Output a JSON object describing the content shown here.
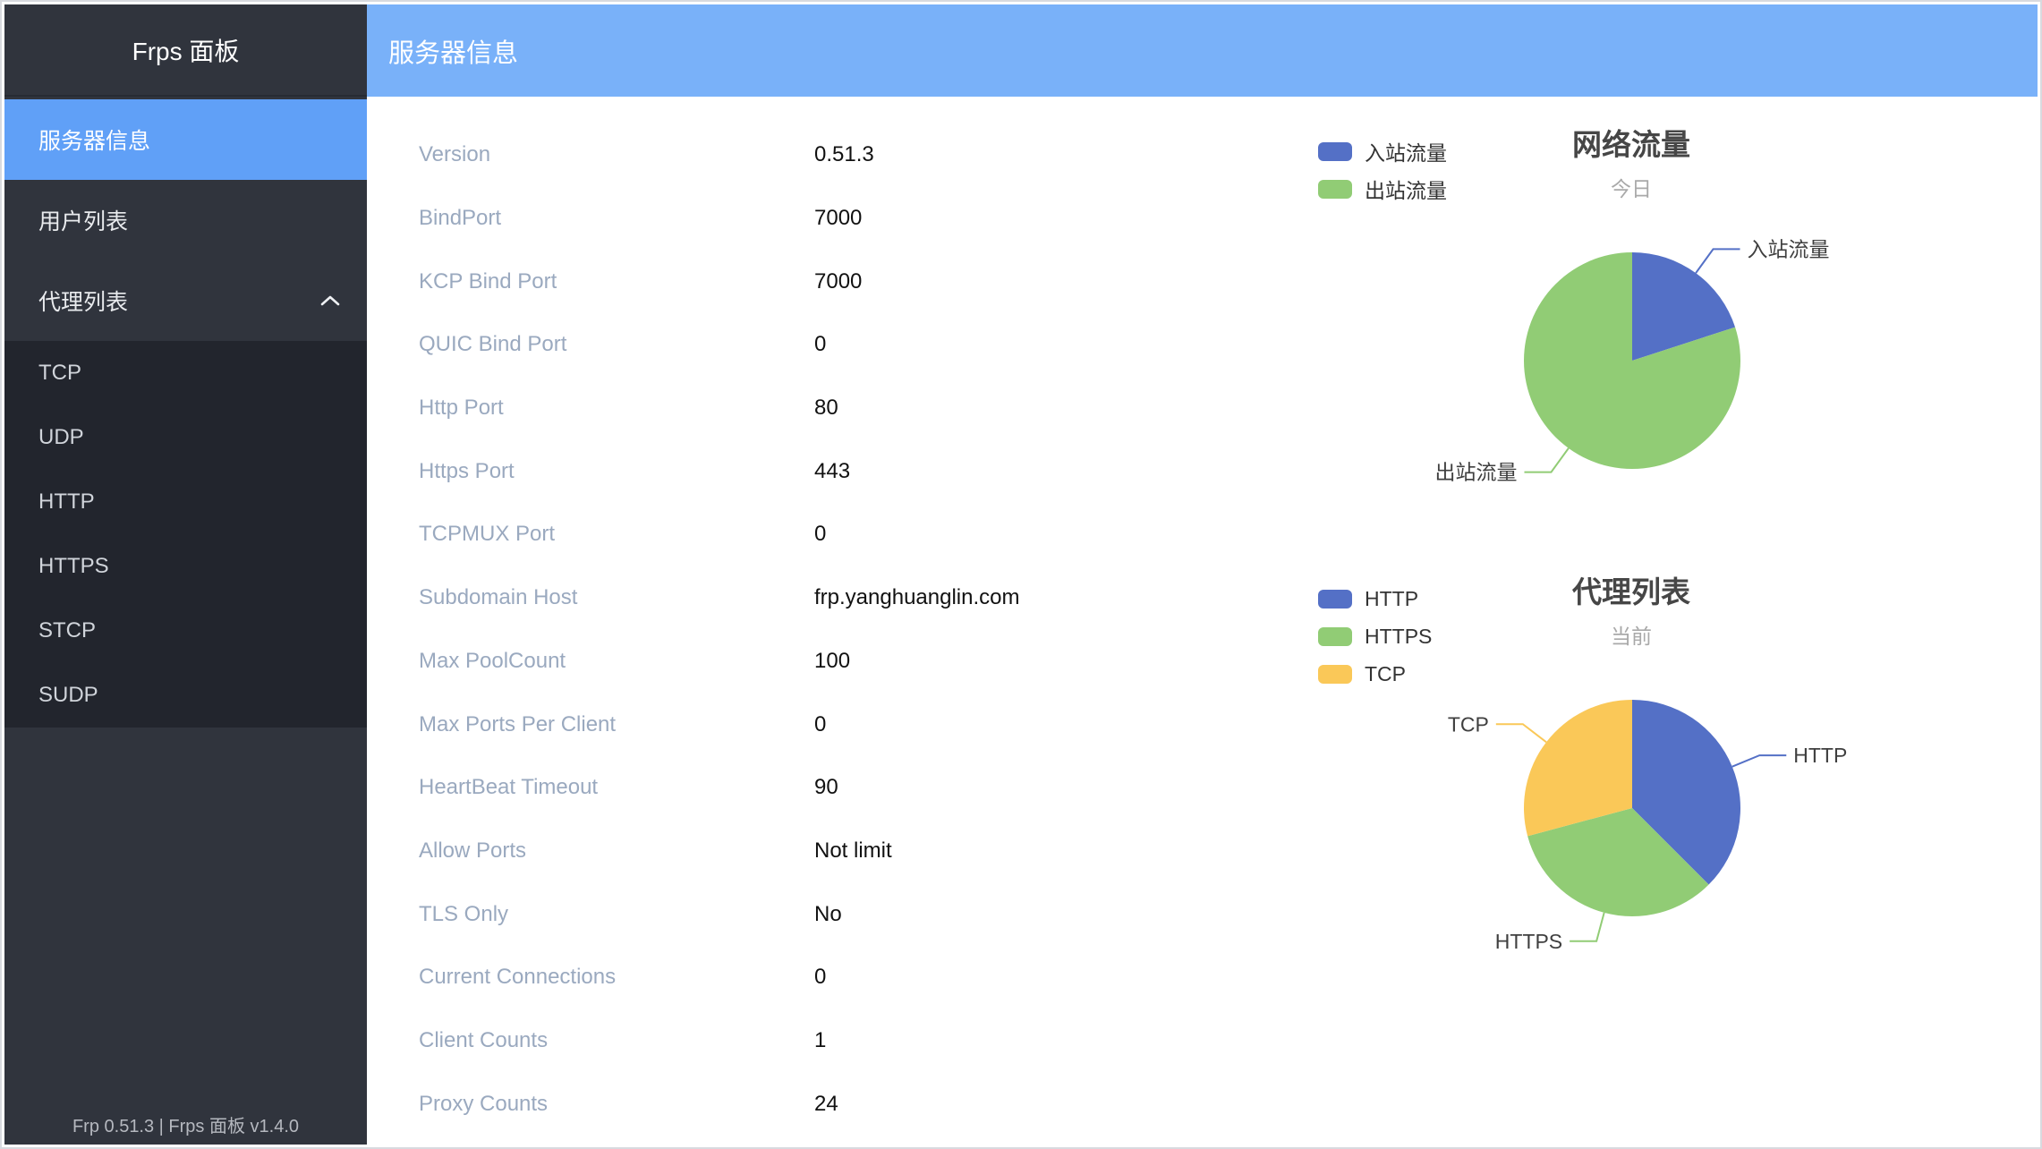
{
  "app": {
    "logo_title": "Frps 面板",
    "footer": "Frp 0.51.3 | Frps 面板 v1.4.0"
  },
  "header": {
    "title": "服务器信息"
  },
  "sidebar": {
    "items": [
      {
        "label": "服务器信息",
        "active": true
      },
      {
        "label": "用户列表",
        "active": false
      },
      {
        "label": "代理列表",
        "active": false,
        "expanded": true
      }
    ],
    "submenu_items": [
      {
        "label": "TCP"
      },
      {
        "label": "UDP"
      },
      {
        "label": "HTTP"
      },
      {
        "label": "HTTPS"
      },
      {
        "label": "STCP"
      },
      {
        "label": "SUDP"
      }
    ]
  },
  "info": {
    "rows": [
      {
        "label": "Version",
        "value": "0.51.3"
      },
      {
        "label": "BindPort",
        "value": "7000"
      },
      {
        "label": "KCP Bind Port",
        "value": "7000"
      },
      {
        "label": "QUIC Bind Port",
        "value": "0"
      },
      {
        "label": "Http Port",
        "value": "80"
      },
      {
        "label": "Https Port",
        "value": "443"
      },
      {
        "label": "TCPMUX Port",
        "value": "0"
      },
      {
        "label": "Subdomain Host",
        "value": "frp.yanghuanglin.com"
      },
      {
        "label": "Max PoolCount",
        "value": "100"
      },
      {
        "label": "Max Ports Per Client",
        "value": "0"
      },
      {
        "label": "HeartBeat Timeout",
        "value": "90"
      },
      {
        "label": "Allow Ports",
        "value": "Not limit"
      },
      {
        "label": "TLS Only",
        "value": "No"
      },
      {
        "label": "Current Connections",
        "value": "0"
      },
      {
        "label": "Client Counts",
        "value": "1"
      },
      {
        "label": "Proxy Counts",
        "value": "24"
      }
    ]
  },
  "chart_data": [
    {
      "type": "pie",
      "title": "网络流量",
      "subtitle": "今日",
      "labels": [
        "入站流量",
        "出站流量"
      ],
      "values": [
        20,
        80
      ],
      "unit": "percent (estimated from slice angles)",
      "colors": [
        "#5470c6",
        "#91cc75"
      ],
      "legend": [
        "入站流量",
        "出站流量"
      ],
      "legend_position": "top-left",
      "start_angle_deg": 0,
      "direction": "clockwise"
    },
    {
      "type": "pie",
      "title": "代理列表",
      "subtitle": "当前",
      "labels": [
        "HTTP",
        "HTTPS",
        "TCP"
      ],
      "values": [
        9,
        8,
        7
      ],
      "unit": "proxies",
      "colors": [
        "#5470c6",
        "#91cc75",
        "#fac858"
      ],
      "legend": [
        "HTTP",
        "HTTPS",
        "TCP"
      ],
      "legend_position": "top-left",
      "start_angle_deg": 0,
      "direction": "clockwise"
    }
  ],
  "colors": {
    "sidebar_bg": "#30343d",
    "submenu_bg": "#22252d",
    "active_item_bg": "#60a0f7",
    "header_bg": "#79b1f9",
    "label_text": "#9aa9bf",
    "pie_blue": "#5470c6",
    "pie_green": "#91cc75",
    "pie_yellow": "#fac858"
  }
}
